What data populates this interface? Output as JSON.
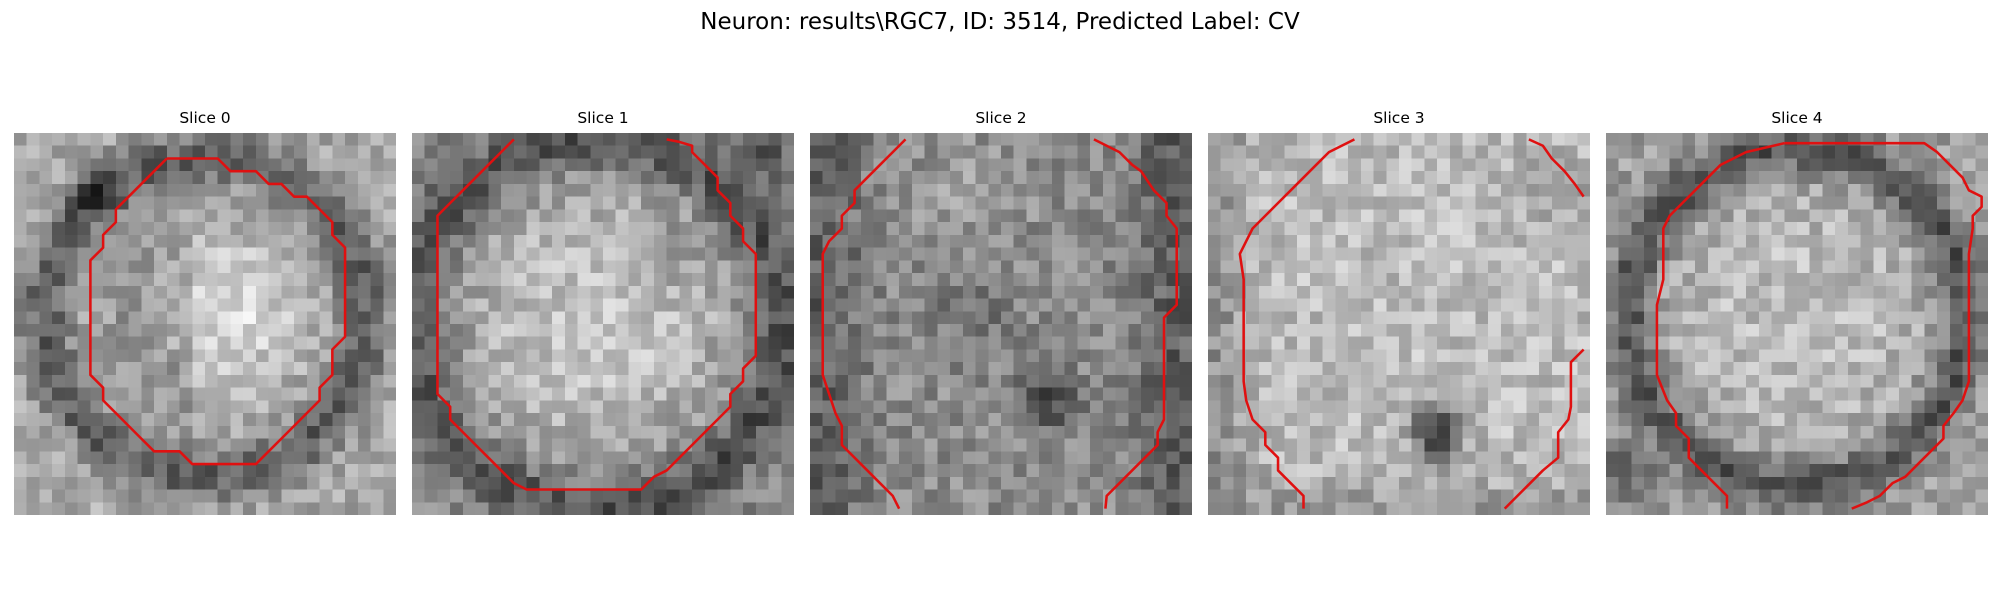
{
  "figure": {
    "suptitle": "Neuron: results\\RGC7, ID: 3514, Predicted Label: CV"
  },
  "panels": [
    {
      "title": "Slice 0",
      "pattern": "ring-dark",
      "contour_color": "#e01010"
    },
    {
      "title": "Slice 1",
      "pattern": "bright-center",
      "contour_color": "#e01010"
    },
    {
      "title": "Slice 2",
      "pattern": "mottled",
      "contour_color": "#e01010"
    },
    {
      "title": "Slice 3",
      "pattern": "bright-with-dark-blob",
      "contour_color": "#e01010"
    },
    {
      "title": "Slice 4",
      "pattern": "ring-light",
      "contour_color": "#e01010"
    }
  ],
  "colormap": "gray"
}
